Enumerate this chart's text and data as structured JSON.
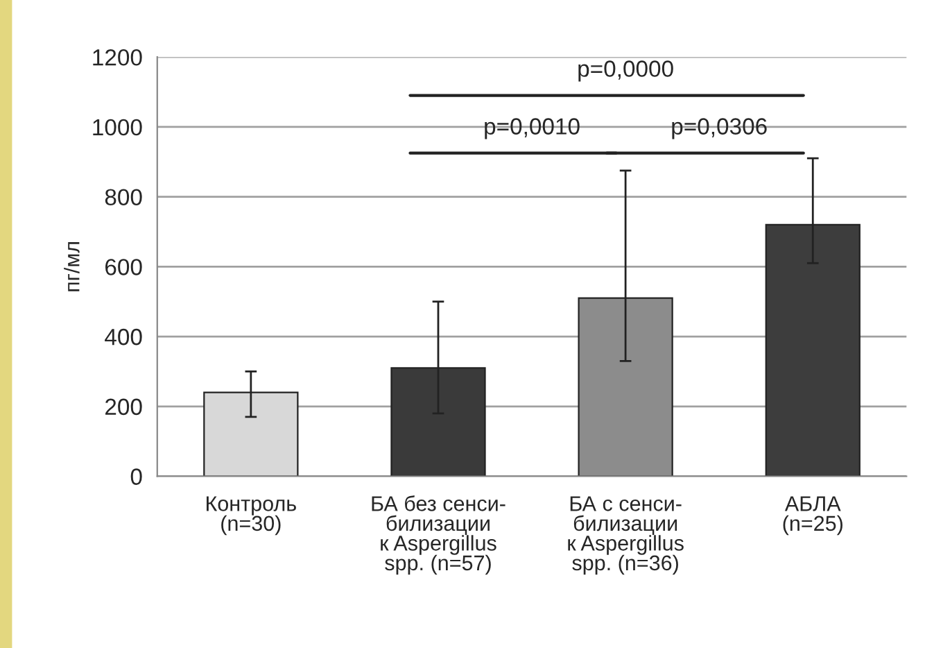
{
  "chart_data": {
    "type": "bar",
    "ylabel": "пг/мл",
    "categories": [
      "Контроль\n(n=30)",
      "БА без сенси-\nбилизации\nк Aspergillus\nspp. (n=57)",
      "БА с сенси-\nбилизации\nк Aspergillus\nspp. (n=36)",
      "АБЛА\n(n=25)"
    ],
    "values": [
      240,
      310,
      510,
      720
    ],
    "errors": [
      [
        170,
        300
      ],
      [
        180,
        500
      ],
      [
        330,
        875
      ],
      [
        610,
        910
      ]
    ],
    "colors": [
      "#d8d8d8",
      "#3a3a3a",
      "#8c8c8c",
      "#3d3d3d"
    ],
    "ylim": [
      0,
      1200
    ],
    "yticks": [
      0,
      200,
      400,
      600,
      800,
      1000,
      1200
    ],
    "grid": "y",
    "annotations": [
      "p=0,0000",
      "p=0,0010",
      "p=0,0306"
    ]
  }
}
